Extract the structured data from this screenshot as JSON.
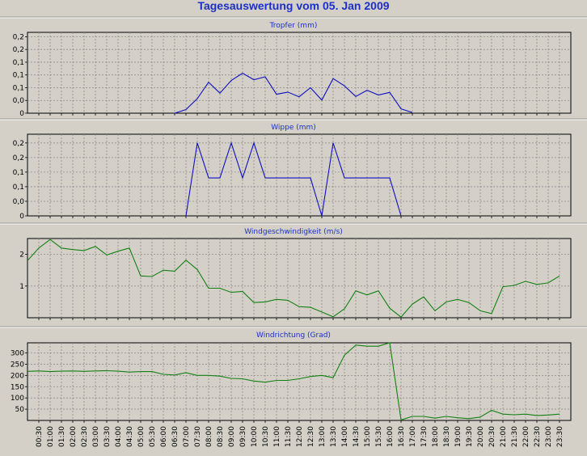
{
  "page_title": "Tagesauswertung vom 05. Jan 2009",
  "chart_data": [
    {
      "type": "line",
      "title": "Tropfer (mm)",
      "color": "#1010c0",
      "yticks": [
        {
          "v": 0,
          "label": "0"
        },
        {
          "v": 0.035,
          "label": "0,0"
        },
        {
          "v": 0.07,
          "label": "0,1"
        },
        {
          "v": 0.105,
          "label": "0,1"
        },
        {
          "v": 0.14,
          "label": "0,1"
        },
        {
          "v": 0.175,
          "label": "0,2"
        },
        {
          "v": 0.21,
          "label": "0,2"
        }
      ],
      "ylim": [
        0,
        0.222
      ],
      "x": [
        "06:30",
        "07:00",
        "07:30",
        "08:00",
        "08:30",
        "09:00",
        "09:30",
        "10:00",
        "10:30",
        "11:00",
        "11:30",
        "12:00",
        "12:30",
        "13:00",
        "13:30",
        "14:00",
        "14:30",
        "15:00",
        "15:30",
        "16:00",
        "16:30",
        "17:00"
      ],
      "values": [
        0,
        0.01,
        0.04,
        0.085,
        0.055,
        0.09,
        0.11,
        0.092,
        0.1,
        0.052,
        0.058,
        0.045,
        0.07,
        0.036,
        0.095,
        0.075,
        0.046,
        0.063,
        0.05,
        0.057,
        0.012,
        0.002
      ]
    },
    {
      "type": "line",
      "title": "Wippe (mm)",
      "color": "#1010c0",
      "yticks": [
        {
          "v": 0,
          "label": "0"
        },
        {
          "v": 0.05,
          "label": "0,0"
        },
        {
          "v": 0.1,
          "label": "0,1"
        },
        {
          "v": 0.15,
          "label": "0,1"
        },
        {
          "v": 0.2,
          "label": "0,2"
        },
        {
          "v": 0.25,
          "label": "0,2"
        }
      ],
      "ylim": [
        0,
        0.28
      ],
      "x": [
        "07:00",
        "07:30",
        "08:00",
        "08:30",
        "09:00",
        "09:30",
        "10:00",
        "10:30",
        "11:00",
        "11:30",
        "12:00",
        "12:30",
        "13:00",
        "13:30",
        "14:00",
        "14:30",
        "15:00",
        "15:30",
        "16:00",
        "16:30"
      ],
      "values": [
        0,
        0.25,
        0.13,
        0.13,
        0.25,
        0.13,
        0.25,
        0.13,
        0.13,
        0.13,
        0.13,
        0.13,
        0,
        0.25,
        0.13,
        0.13,
        0.13,
        0.13,
        0.13,
        0
      ]
    },
    {
      "type": "line",
      "title": "Windgeschwindigkeit (m/s)",
      "color": "#138013",
      "yticks": [
        {
          "v": 1,
          "label": "1"
        },
        {
          "v": 2,
          "label": "2"
        }
      ],
      "ylim": [
        0,
        2.5
      ],
      "x": [
        "00:00",
        "00:30",
        "01:00",
        "01:30",
        "02:00",
        "02:30",
        "03:00",
        "03:30",
        "04:00",
        "04:30",
        "05:00",
        "05:30",
        "06:00",
        "06:30",
        "07:00",
        "07:30",
        "08:00",
        "08:30",
        "09:00",
        "09:30",
        "10:00",
        "10:30",
        "11:00",
        "11:30",
        "12:00",
        "12:30",
        "13:00",
        "13:30",
        "14:00",
        "14:30",
        "15:00",
        "15:30",
        "16:00",
        "16:30",
        "17:00",
        "17:30",
        "18:00",
        "18:30",
        "19:00",
        "19:30",
        "20:00",
        "20:30",
        "21:00",
        "21:30",
        "22:00",
        "22:30",
        "23:00",
        "23:30"
      ],
      "values": [
        1.8,
        2.2,
        2.47,
        2.2,
        2.15,
        2.12,
        2.25,
        1.98,
        2.1,
        2.2,
        1.32,
        1.3,
        1.5,
        1.47,
        1.82,
        1.52,
        0.93,
        0.93,
        0.8,
        0.83,
        0.48,
        0.5,
        0.58,
        0.55,
        0.35,
        0.33,
        0.18,
        0.03,
        0.28,
        0.85,
        0.72,
        0.85,
        0.3,
        0.02,
        0.43,
        0.66,
        0.22,
        0.5,
        0.58,
        0.48,
        0.22,
        0.13,
        0.98,
        1.02,
        1.15,
        1.05,
        1.1,
        1.32
      ]
    },
    {
      "type": "line",
      "title": "Windrichtung (Grad)",
      "color": "#138013",
      "yticks": [
        {
          "v": 50,
          "label": "50"
        },
        {
          "v": 100,
          "label": "100"
        },
        {
          "v": 150,
          "label": "150"
        },
        {
          "v": 200,
          "label": "200"
        },
        {
          "v": 250,
          "label": "250"
        },
        {
          "v": 300,
          "label": "300"
        }
      ],
      "ylim": [
        0,
        345
      ],
      "x": [
        "00:00",
        "00:30",
        "01:00",
        "01:30",
        "02:00",
        "02:30",
        "03:00",
        "03:30",
        "04:00",
        "04:30",
        "05:00",
        "05:30",
        "06:00",
        "06:30",
        "07:00",
        "07:30",
        "08:00",
        "08:30",
        "09:00",
        "09:30",
        "10:00",
        "10:30",
        "11:00",
        "11:30",
        "12:00",
        "12:30",
        "13:00",
        "13:30",
        "14:00",
        "14:30",
        "15:00",
        "15:30",
        "16:00",
        "16:30",
        "17:00",
        "17:30",
        "18:00",
        "18:30",
        "19:00",
        "19:30",
        "20:00",
        "20:30",
        "21:00",
        "21:30",
        "22:00",
        "22:30",
        "23:00",
        "23:30"
      ],
      "values": [
        218,
        220,
        217,
        219,
        220,
        218,
        220,
        221,
        219,
        215,
        217,
        217,
        205,
        202,
        212,
        200,
        200,
        197,
        187,
        185,
        175,
        170,
        178,
        178,
        185,
        195,
        200,
        190,
        290,
        335,
        330,
        330,
        345,
        2,
        18,
        18,
        10,
        18,
        12,
        8,
        15,
        45,
        28,
        25,
        28,
        22,
        24,
        28
      ]
    }
  ],
  "x_axis": {
    "tick_labels": [
      "00:30",
      "01:00",
      "01:30",
      "02:00",
      "02:30",
      "03:00",
      "03:30",
      "04:00",
      "04:30",
      "05:00",
      "05:30",
      "06:00",
      "06:30",
      "07:00",
      "07:30",
      "08:00",
      "08:30",
      "09:00",
      "09:30",
      "10:00",
      "10:30",
      "11:00",
      "11:30",
      "12:00",
      "12:30",
      "13:00",
      "13:30",
      "14:00",
      "14:30",
      "15:00",
      "15:30",
      "16:00",
      "16:30",
      "17:00",
      "17:30",
      "18:00",
      "18:30",
      "19:00",
      "19:30",
      "20:00",
      "20:30",
      "21:00",
      "21:30",
      "22:00",
      "22:30",
      "23:00",
      "23:30"
    ]
  }
}
